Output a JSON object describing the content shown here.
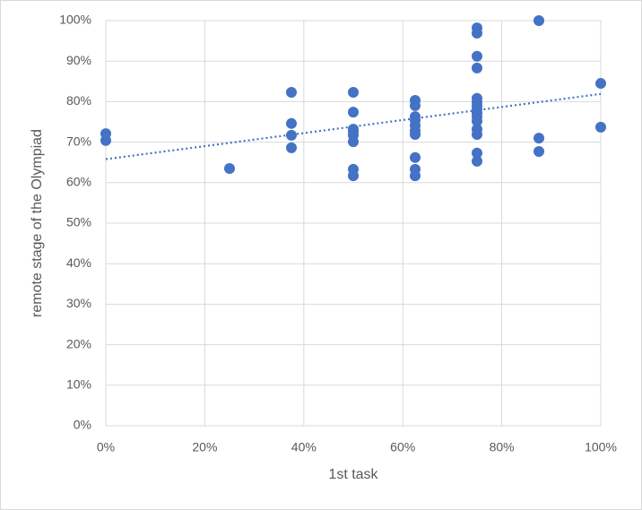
{
  "chart_data": {
    "type": "scatter",
    "x_label": "1st task",
    "y_label": "remote stage of the Olympiad",
    "xlim": [
      0,
      100
    ],
    "ylim": [
      0,
      100
    ],
    "xticks": [
      {
        "value": 0,
        "label": "0%"
      },
      {
        "value": 20,
        "label": "20%"
      },
      {
        "value": 40,
        "label": "40%"
      },
      {
        "value": 60,
        "label": "60%"
      },
      {
        "value": 80,
        "label": "80%"
      },
      {
        "value": 100,
        "label": "100%"
      }
    ],
    "yticks": [
      {
        "value": 0,
        "label": "0%"
      },
      {
        "value": 10,
        "label": "10%"
      },
      {
        "value": 20,
        "label": "20%"
      },
      {
        "value": 30,
        "label": "30%"
      },
      {
        "value": 40,
        "label": "40%"
      },
      {
        "value": 50,
        "label": "50%"
      },
      {
        "value": 60,
        "label": "60%"
      },
      {
        "value": 70,
        "label": "70%"
      },
      {
        "value": 80,
        "label": "80%"
      },
      {
        "value": 90,
        "label": "90%"
      },
      {
        "value": 100,
        "label": "100%"
      }
    ],
    "grid": true,
    "color": "#4472c4",
    "x": [
      0,
      0,
      25,
      37.5,
      37.5,
      37.5,
      37.5,
      50,
      50,
      50,
      50,
      50,
      50,
      50,
      50,
      62.5,
      62.5,
      62.5,
      62.5,
      62.5,
      62.5,
      62.5,
      62.5,
      62.5,
      62.5,
      75,
      75,
      75,
      75,
      75,
      75,
      75,
      75,
      75,
      75,
      75,
      75,
      75,
      75,
      75,
      87.5,
      87.5,
      87.5,
      100,
      100
    ],
    "values": [
      72.1,
      70.4,
      63.5,
      82.3,
      74.6,
      71.7,
      68.6,
      82.3,
      77.4,
      73.2,
      72.6,
      71.7,
      70.1,
      63.3,
      61.7,
      80.3,
      79,
      76.3,
      75.4,
      74.1,
      72.8,
      71.9,
      66.2,
      63.3,
      61.7,
      98.2,
      96.9,
      91.2,
      88.3,
      80.8,
      79.9,
      79,
      78.1,
      77.2,
      76.3,
      75.2,
      73.2,
      71.9,
      67.3,
      65.3,
      100,
      71,
      67.7,
      84.5,
      73.7
    ],
    "trendline": {
      "style": "dotted",
      "color": "#4472c4",
      "x": [
        0,
        100
      ],
      "values": [
        65.8,
        81.9
      ]
    }
  }
}
